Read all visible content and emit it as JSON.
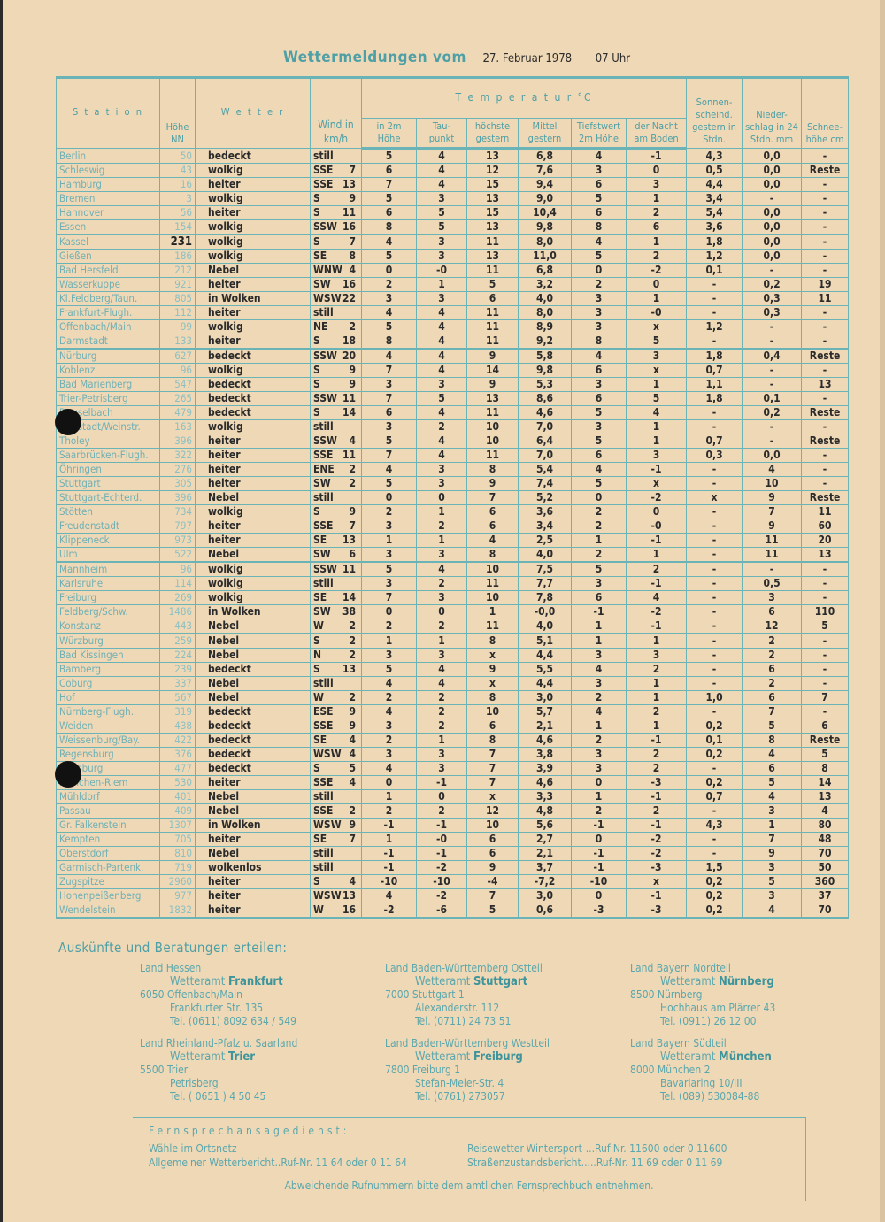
{
  "title": {
    "heading": "Wettermeldungen vom",
    "date": "27. Februar 1978",
    "time": "07 Uhr"
  },
  "colors": {
    "paper": "#efd8b6",
    "accent": "#4fa0a6"
  },
  "table": {
    "headers": {
      "station": "S t a t i o n",
      "hoehe": "Höhe NN",
      "wetter": "W e t t e r",
      "wind": "Wind in km/h",
      "temperatur": "T e m p e r a t u r °C",
      "in2m": "in 2m Höhe",
      "taupunkt": "Tau- punkt",
      "hoechste": "höchste gestern",
      "mittel": "Mittel gestern",
      "tiefst2m": "Tiefstwert 2m Höhe",
      "nacht": "der Nacht am Boden",
      "sonne": "Sonnen- scheind. gestern in Stdn.",
      "nieder": "Nieder- schlag in 24 Stdn. mm",
      "schnee": "Schnee- höhe cm"
    },
    "rows": [
      [
        "Berlin",
        "50",
        "bedeckt",
        "still",
        "",
        "5",
        "4",
        "13",
        "6,8",
        "4",
        "-1",
        "4,3",
        "0,0",
        "-"
      ],
      [
        "Schleswig",
        "43",
        "wolkig",
        "SSE",
        "7",
        "6",
        "4",
        "12",
        "7,6",
        "3",
        "0",
        "0,5",
        "0,0",
        "Reste"
      ],
      [
        "Hamburg",
        "16",
        "heiter",
        "SSE",
        "13",
        "7",
        "4",
        "15",
        "9,4",
        "6",
        "3",
        "4,4",
        "0,0",
        "-"
      ],
      [
        "Bremen",
        "3",
        "wolkig",
        "S",
        "9",
        "5",
        "3",
        "13",
        "9,0",
        "5",
        "1",
        "3,4",
        "-",
        "-"
      ],
      [
        "Hannover",
        "56",
        "heiter",
        "S",
        "11",
        "6",
        "5",
        "15",
        "10,4",
        "6",
        "2",
        "5,4",
        "0,0",
        "-"
      ],
      [
        "Essen",
        "154",
        "wolkig",
        "SSW",
        "16",
        "8",
        "5",
        "13",
        "9,8",
        "8",
        "6",
        "3,6",
        "0,0",
        "-"
      ],
      [
        "Kassel",
        "231",
        "wolkig",
        "S",
        "7",
        "4",
        "3",
        "11",
        "8,0",
        "4",
        "1",
        "1,8",
        "0,0",
        "-"
      ],
      [
        "Gießen",
        "186",
        "wolkig",
        "SE",
        "8",
        "5",
        "3",
        "13",
        "11,0",
        "5",
        "2",
        "1,2",
        "0,0",
        "-"
      ],
      [
        "Bad Hersfeld",
        "212",
        "Nebel",
        "WNW",
        "4",
        "0",
        "-0",
        "11",
        "6,8",
        "0",
        "-2",
        "0,1",
        "-",
        "-"
      ],
      [
        "Wasserkuppe",
        "921",
        "heiter",
        "SW",
        "16",
        "2",
        "1",
        "5",
        "3,2",
        "2",
        "0",
        "-",
        "0,2",
        "19"
      ],
      [
        "Kl.Feldberg/Taun.",
        "805",
        "in Wolken",
        "WSW",
        "22",
        "3",
        "3",
        "6",
        "4,0",
        "3",
        "1",
        "-",
        "0,3",
        "11"
      ],
      [
        "Frankfurt-Flugh.",
        "112",
        "heiter",
        "still",
        "",
        "4",
        "4",
        "11",
        "8,0",
        "3",
        "-0",
        "-",
        "0,3",
        "-"
      ],
      [
        "Offenbach/Main",
        "99",
        "wolkig",
        "NE",
        "2",
        "5",
        "4",
        "11",
        "8,9",
        "3",
        "x",
        "1,2",
        "-",
        "-"
      ],
      [
        "Darmstadt",
        "133",
        "heiter",
        "S",
        "18",
        "8",
        "4",
        "11",
        "9,2",
        "8",
        "5",
        "-",
        "-",
        "-"
      ],
      [
        "Nürburg",
        "627",
        "bedeckt",
        "SSW",
        "20",
        "4",
        "4",
        "9",
        "5,8",
        "4",
        "3",
        "1,8",
        "0,4",
        "Reste"
      ],
      [
        "Koblenz",
        "96",
        "wolkig",
        "S",
        "9",
        "7",
        "4",
        "14",
        "9,8",
        "6",
        "x",
        "0,7",
        "-",
        "-"
      ],
      [
        "Bad Marienberg",
        "547",
        "bedeckt",
        "S",
        "9",
        "3",
        "3",
        "9",
        "5,3",
        "3",
        "1",
        "1,1",
        "-",
        "13"
      ],
      [
        "Trier-Petrisberg",
        "265",
        "bedeckt",
        "SSW",
        "11",
        "7",
        "5",
        "13",
        "8,6",
        "6",
        "5",
        "1,8",
        "0,1",
        "-"
      ],
      [
        "Deuselbach",
        "479",
        "bedeckt",
        "S",
        "14",
        "6",
        "4",
        "11",
        "4,6",
        "5",
        "4",
        "-",
        "0,2",
        "Reste"
      ],
      [
        "Neustadt/Weinstr.",
        "163",
        "wolkig",
        "still",
        "",
        "3",
        "2",
        "10",
        "7,0",
        "3",
        "1",
        "-",
        "-",
        "-"
      ],
      [
        "Tholey",
        "396",
        "heiter",
        "SSW",
        "4",
        "5",
        "4",
        "10",
        "6,4",
        "5",
        "1",
        "0,7",
        "-",
        "Reste"
      ],
      [
        "Saarbrücken-Flugh.",
        "322",
        "heiter",
        "SSE",
        "11",
        "7",
        "4",
        "11",
        "7,0",
        "6",
        "3",
        "0,3",
        "0,0",
        "-"
      ],
      [
        "Öhringen",
        "276",
        "heiter",
        "ENE",
        "2",
        "4",
        "3",
        "8",
        "5,4",
        "4",
        "-1",
        "-",
        "4",
        "-"
      ],
      [
        "Stuttgart",
        "305",
        "heiter",
        "SW",
        "2",
        "5",
        "3",
        "9",
        "7,4",
        "5",
        "x",
        "-",
        "10",
        "-"
      ],
      [
        "Stuttgart-Echterd.",
        "396",
        "Nebel",
        "still",
        "",
        "0",
        "0",
        "7",
        "5,2",
        "0",
        "-2",
        "x",
        "9",
        "Reste"
      ],
      [
        "Stötten",
        "734",
        "wolkig",
        "S",
        "9",
        "2",
        "1",
        "6",
        "3,6",
        "2",
        "0",
        "-",
        "7",
        "11"
      ],
      [
        "Freudenstadt",
        "797",
        "heiter",
        "SSE",
        "7",
        "3",
        "2",
        "6",
        "3,4",
        "2",
        "-0",
        "-",
        "9",
        "60"
      ],
      [
        "Klippeneck",
        "973",
        "heiter",
        "SE",
        "13",
        "1",
        "1",
        "4",
        "2,5",
        "1",
        "-1",
        "-",
        "11",
        "20"
      ],
      [
        "Ulm",
        "522",
        "Nebel",
        "SW",
        "6",
        "3",
        "3",
        "8",
        "4,0",
        "2",
        "1",
        "-",
        "11",
        "13"
      ],
      [
        "Mannheim",
        "96",
        "wolkig",
        "SSW",
        "11",
        "5",
        "4",
        "10",
        "7,5",
        "5",
        "2",
        "-",
        "-",
        "-"
      ],
      [
        "Karlsruhe",
        "114",
        "wolkig",
        "still",
        "",
        "3",
        "2",
        "11",
        "7,7",
        "3",
        "-1",
        "-",
        "0,5",
        "-"
      ],
      [
        "Freiburg",
        "269",
        "wolkig",
        "SE",
        "14",
        "7",
        "3",
        "10",
        "7,8",
        "6",
        "4",
        "-",
        "3",
        "-"
      ],
      [
        "Feldberg/Schw.",
        "1486",
        "in Wolken",
        "SW",
        "38",
        "0",
        "0",
        "1",
        "-0,0",
        "-1",
        "-2",
        "-",
        "6",
        "110"
      ],
      [
        "Konstanz",
        "443",
        "Nebel",
        "W",
        "2",
        "2",
        "2",
        "11",
        "4,0",
        "1",
        "-1",
        "-",
        "12",
        "5"
      ],
      [
        "Würzburg",
        "259",
        "Nebel",
        "S",
        "2",
        "1",
        "1",
        "8",
        "5,1",
        "1",
        "1",
        "-",
        "2",
        "-"
      ],
      [
        "Bad Kissingen",
        "224",
        "Nebel",
        "N",
        "2",
        "3",
        "3",
        "x",
        "4,4",
        "3",
        "3",
        "-",
        "2",
        "-"
      ],
      [
        "Bamberg",
        "239",
        "bedeckt",
        "S",
        "13",
        "5",
        "4",
        "9",
        "5,5",
        "4",
        "2",
        "-",
        "6",
        "-"
      ],
      [
        "Coburg",
        "337",
        "Nebel",
        "still",
        "",
        "4",
        "4",
        "x",
        "4,4",
        "3",
        "1",
        "-",
        "2",
        "-"
      ],
      [
        "Hof",
        "567",
        "Nebel",
        "W",
        "2",
        "2",
        "2",
        "8",
        "3,0",
        "2",
        "1",
        "1,0",
        "6",
        "7"
      ],
      [
        "Nürnberg-Flugh.",
        "319",
        "bedeckt",
        "ESE",
        "9",
        "4",
        "2",
        "10",
        "5,7",
        "4",
        "2",
        "-",
        "7",
        "-"
      ],
      [
        "Weiden",
        "438",
        "bedeckt",
        "SSE",
        "9",
        "3",
        "2",
        "6",
        "2,1",
        "1",
        "1",
        "0,2",
        "5",
        "6"
      ],
      [
        "Weissenburg/Bay.",
        "422",
        "bedeckt",
        "SE",
        "4",
        "2",
        "1",
        "8",
        "4,6",
        "2",
        "-1",
        "0,1",
        "8",
        "Reste"
      ],
      [
        "Regensburg",
        "376",
        "bedeckt",
        "WSW",
        "4",
        "3",
        "3",
        "7",
        "3,8",
        "3",
        "2",
        "0,2",
        "4",
        "5"
      ],
      [
        "Augsburg",
        "477",
        "bedeckt",
        "S",
        "5",
        "4",
        "3",
        "7",
        "3,9",
        "3",
        "2",
        "-",
        "6",
        "8"
      ],
      [
        "München-Riem",
        "530",
        "heiter",
        "SSE",
        "4",
        "0",
        "-1",
        "7",
        "4,6",
        "0",
        "-3",
        "0,2",
        "5",
        "14"
      ],
      [
        "Mühldorf",
        "401",
        "Nebel",
        "still",
        "",
        "1",
        "0",
        "x",
        "3,3",
        "1",
        "-1",
        "0,7",
        "4",
        "13"
      ],
      [
        "Passau",
        "409",
        "Nebel",
        "SSE",
        "2",
        "2",
        "2",
        "12",
        "4,8",
        "2",
        "2",
        "-",
        "3",
        "4"
      ],
      [
        "Gr. Falkenstein",
        "1307",
        "in Wolken",
        "WSW",
        "9",
        "-1",
        "-1",
        "10",
        "5,6",
        "-1",
        "-1",
        "4,3",
        "1",
        "80"
      ],
      [
        "Kempten",
        "705",
        "heiter",
        "SE",
        "7",
        "1",
        "-0",
        "6",
        "2,7",
        "0",
        "-2",
        "-",
        "7",
        "48"
      ],
      [
        "Oberstdorf",
        "810",
        "Nebel",
        "still",
        "",
        "-1",
        "-1",
        "6",
        "2,1",
        "-1",
        "-2",
        "-",
        "9",
        "70"
      ],
      [
        "Garmisch-Partenk.",
        "719",
        "wolkenlos",
        "still",
        "",
        "-1",
        "-2",
        "9",
        "3,7",
        "-1",
        "-3",
        "1,5",
        "3",
        "50"
      ],
      [
        "Zugspitze",
        "2960",
        "heiter",
        "S",
        "4",
        "-10",
        "-10",
        "-4",
        "-7,2",
        "-10",
        "x",
        "0,2",
        "5",
        "360"
      ],
      [
        "Hohenpeißenberg",
        "977",
        "heiter",
        "WSW",
        "13",
        "4",
        "-2",
        "7",
        "3,0",
        "0",
        "-1",
        "0,2",
        "3",
        "37"
      ],
      [
        "Wendelstein",
        "1832",
        "heiter",
        "W",
        "16",
        "-2",
        "-6",
        "5",
        "0,6",
        "-3",
        "-3",
        "0,2",
        "4",
        "70"
      ]
    ]
  },
  "info": {
    "heading": "Auskünfte und Beratungen erteilen:",
    "contacts": [
      {
        "land": "Land Hessen",
        "amt": "Wetteramt",
        "city": "Frankfurt",
        "addr1": "6050 Offenbach/Main",
        "addr2": "Frankfurter Str. 135",
        "tel": "Tel. (0611) 8092 634 / 549"
      },
      {
        "land": "Land Baden-Württemberg Ostteil",
        "amt": "Wetteramt",
        "city": "Stuttgart",
        "addr1": "7000 Stuttgart 1",
        "addr2": "Alexanderstr. 112",
        "tel": "Tel. (0711) 24 73 51"
      },
      {
        "land": "Land Bayern Nordteil",
        "amt": "Wetteramt",
        "city": "Nürnberg",
        "addr1": "8500 Nürnberg",
        "addr2": "Hochhaus am Plärrer 43",
        "tel": "Tel. (0911) 26 12 00"
      },
      {
        "land": "Land Rheinland-Pfalz u. Saarland",
        "amt": "Wetteramt",
        "city": "Trier",
        "addr1": "5500 Trier",
        "addr2": "Petrisberg",
        "tel": "Tel. ( 0651 ) 4 50 45"
      },
      {
        "land": "Land Baden-Württemberg Westteil",
        "amt": "Wetteramt",
        "city": "Freiburg",
        "addr1": "7800 Freiburg 1",
        "addr2": "Stefan-Meier-Str. 4",
        "tel": "Tel. (0761) 273057"
      },
      {
        "land": "Land Bayern Südteil",
        "amt": "Wetteramt",
        "city": "München",
        "addr1": "8000 München 2",
        "addr2": "Bavariaring 10/III",
        "tel": "Tel. (089) 530084-88"
      }
    ]
  },
  "phone": {
    "heading": "Fernsprechansagedienst:",
    "l1": "Wähle im Ortsnetz",
    "l2": "Allgemeiner Wetterbericht..Ruf-Nr. 11 64 oder 0 11 64",
    "r1": "Reisewetter-Wintersport-...Ruf-Nr. 11600 oder 0 11600",
    "r2": "Straßenzustandsbericht.....Ruf-Nr. 11 69 oder 0 11 69",
    "footer": "Abweichende Rufnummern bitte dem amtlichen Fernsprechbuch entnehmen."
  }
}
